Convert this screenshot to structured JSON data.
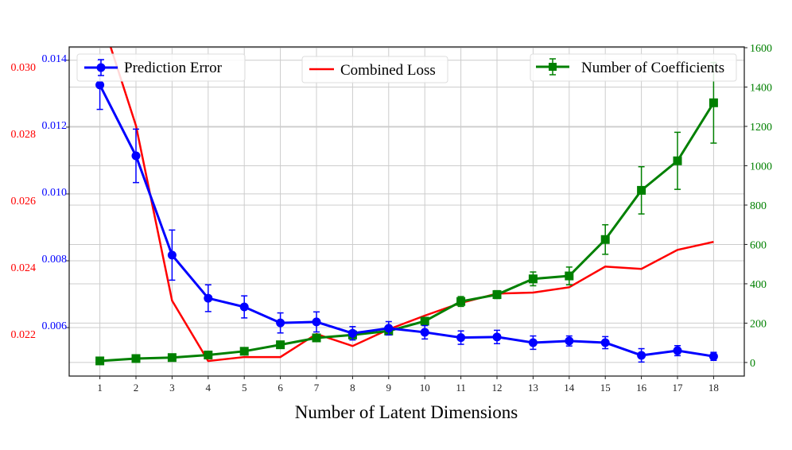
{
  "chart_data": {
    "type": "line",
    "xlabel": "Number of Latent Dimensions",
    "x": [
      1,
      2,
      3,
      4,
      5,
      6,
      7,
      8,
      9,
      10,
      11,
      12,
      13,
      14,
      15,
      16,
      17,
      18
    ],
    "xlim": [
      0.15,
      18.85
    ],
    "grid": true,
    "series": [
      {
        "name": "Prediction Error",
        "axis": "left-inner",
        "color": "#0000ff",
        "marker": "circle",
        "values": [
          0.01326,
          0.01114,
          0.00817,
          0.00688,
          0.00662,
          0.00614,
          0.00617,
          0.00583,
          0.00598,
          0.00586,
          0.0057,
          0.00572,
          0.00555,
          0.0056,
          0.00555,
          0.00517,
          0.00531,
          0.00514
        ],
        "errors": [
          0.00073,
          0.0008,
          0.00075,
          0.0004,
          0.00033,
          0.0003,
          0.0003,
          0.0002,
          0.0002,
          0.0002,
          0.0002,
          0.0002,
          0.0002,
          0.00015,
          0.00018,
          0.0002,
          0.00015,
          0.00012
        ]
      },
      {
        "name": "Combined Loss",
        "axis": "left-outer",
        "color": "#ff0000",
        "marker": "none",
        "values": [
          0.0316,
          0.02824,
          0.023,
          0.02119,
          0.02131,
          0.02131,
          0.022,
          0.02164,
          0.02214,
          0.02255,
          0.02293,
          0.02321,
          0.02324,
          0.0234,
          0.02402,
          0.02395,
          0.02452,
          0.02476
        ]
      },
      {
        "name": "Number of Coefficients",
        "axis": "right",
        "color": "#008000",
        "marker": "square",
        "values": [
          8,
          20,
          25,
          38,
          57,
          90,
          125,
          140,
          160,
          210,
          310,
          345,
          425,
          440,
          625,
          875,
          1025,
          1320
        ],
        "errors": [
          3,
          4,
          4,
          5,
          6,
          8,
          10,
          10,
          10,
          15,
          25,
          20,
          35,
          45,
          75,
          120,
          145,
          205
        ]
      }
    ],
    "axes": {
      "left_inner": {
        "color": "#0000ff",
        "ylim": [
          0.00455,
          0.0144
        ],
        "ticks": [
          "0.006",
          "0.008",
          "0.010",
          "0.012",
          "0.014"
        ]
      },
      "left_outer": {
        "color": "#ff0000",
        "ylim": [
          0.02074,
          0.0306
        ],
        "ticks": [
          "0.022",
          "0.024",
          "0.026",
          "0.028",
          "0.030"
        ]
      },
      "right": {
        "color": "#008000",
        "ylim": [
          -69,
          1604
        ],
        "ticks": [
          "0",
          "200",
          "400",
          "600",
          "800",
          "1000",
          "1200",
          "1400",
          "1600"
        ]
      }
    },
    "legends": [
      {
        "label": "Prediction Error",
        "placement": "top-left"
      },
      {
        "label": "Combined Loss",
        "placement": "top-center"
      },
      {
        "label": "Number of Coefficients",
        "placement": "top-right"
      }
    ]
  }
}
